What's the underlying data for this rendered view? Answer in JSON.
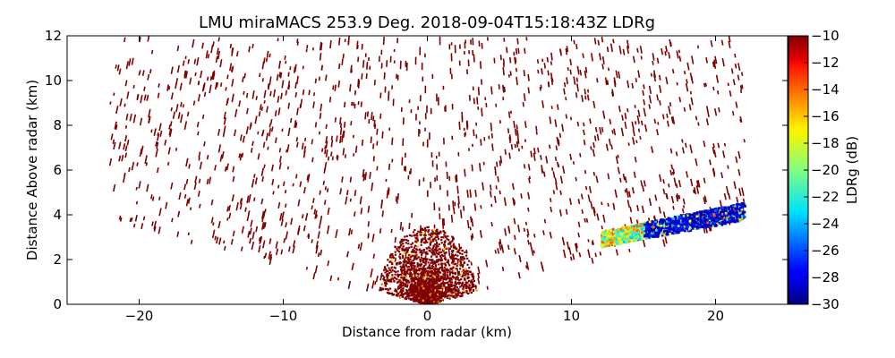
{
  "chart_data": {
    "type": "heatmap",
    "title": "LMU miraMACS 253.9 Deg. 2018-09-04T15:18:43Z  LDRg",
    "xlabel": "Distance from radar (km)",
    "ylabel": "Distance Above radar  (km)",
    "xlim": [
      -25,
      25
    ],
    "ylim": [
      0,
      12
    ],
    "xticks": [
      -20,
      -10,
      0,
      10,
      20
    ],
    "xtick_labels": [
      "−20",
      "−10",
      "0",
      "10",
      "20"
    ],
    "yticks": [
      0,
      2,
      4,
      6,
      8,
      10,
      12
    ],
    "ytick_labels": [
      "0",
      "2",
      "4",
      "6",
      "8",
      "10",
      "12"
    ],
    "colorbar": {
      "label": "LDRg (dB)",
      "range": [
        -30,
        -10
      ],
      "ticks": [
        -10,
        -12,
        -14,
        -16,
        -18,
        -20,
        -22,
        -24,
        -26,
        -28,
        -30
      ],
      "tick_labels": [
        "−10",
        "−12",
        "−14",
        "−16",
        "−18",
        "−20",
        "−22",
        "−24",
        "−26",
        "−28",
        "−30"
      ],
      "colormap": "jet"
    },
    "grid": false,
    "scan_azimuth_deg": 253.9,
    "elevation_coverage_deg": [
      10,
      170
    ],
    "features": [
      {
        "name": "noise-sector",
        "description": "speckle at LDRg ≈ −10 dB throughout the RHI scan",
        "ldrg": -10
      },
      {
        "name": "dense-near-field",
        "range_km": [
          0,
          3.5
        ],
        "ldrg": -10
      },
      {
        "name": "cloud-layer",
        "x_km": [
          12,
          22
        ],
        "height_km_at_x12": [
          2.6,
          3.3
        ],
        "height_km_at_x22": [
          3.8,
          4.6
        ],
        "ldrg_range": [
          -30,
          -14
        ],
        "ldrg_core": -28
      }
    ]
  }
}
